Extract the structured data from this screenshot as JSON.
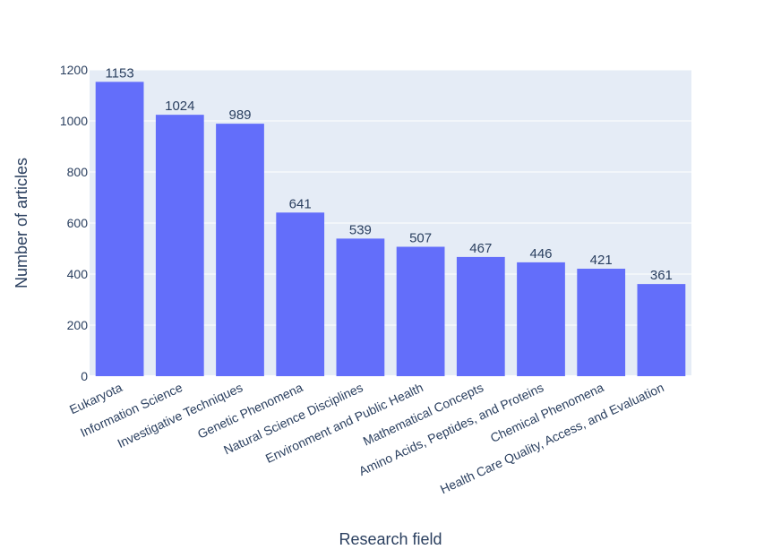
{
  "chart_data": {
    "type": "bar",
    "xlabel": "Research field",
    "ylabel": "Number of articles",
    "ylim": [
      0,
      1200
    ],
    "yticks": [
      0,
      200,
      400,
      600,
      800,
      1000,
      1200
    ],
    "grid": true,
    "categories": [
      "Eukaryota",
      "Information Science",
      "Investigative Techniques",
      "Genetic Phenomena",
      "Natural Science Disciplines",
      "Environment and Public Health",
      "Mathematical Concepts",
      "Amino Acids, Peptides, and Proteins",
      "Chemical Phenomena",
      "Health Care Quality, Access, and Evaluation"
    ],
    "values": [
      1153,
      1024,
      989,
      641,
      539,
      507,
      467,
      446,
      421,
      361
    ],
    "colors": {
      "bar": "#636efa",
      "plot_background": "#e5ecf6",
      "gridline": "#ffffff",
      "text": "#2a3f5f"
    }
  }
}
